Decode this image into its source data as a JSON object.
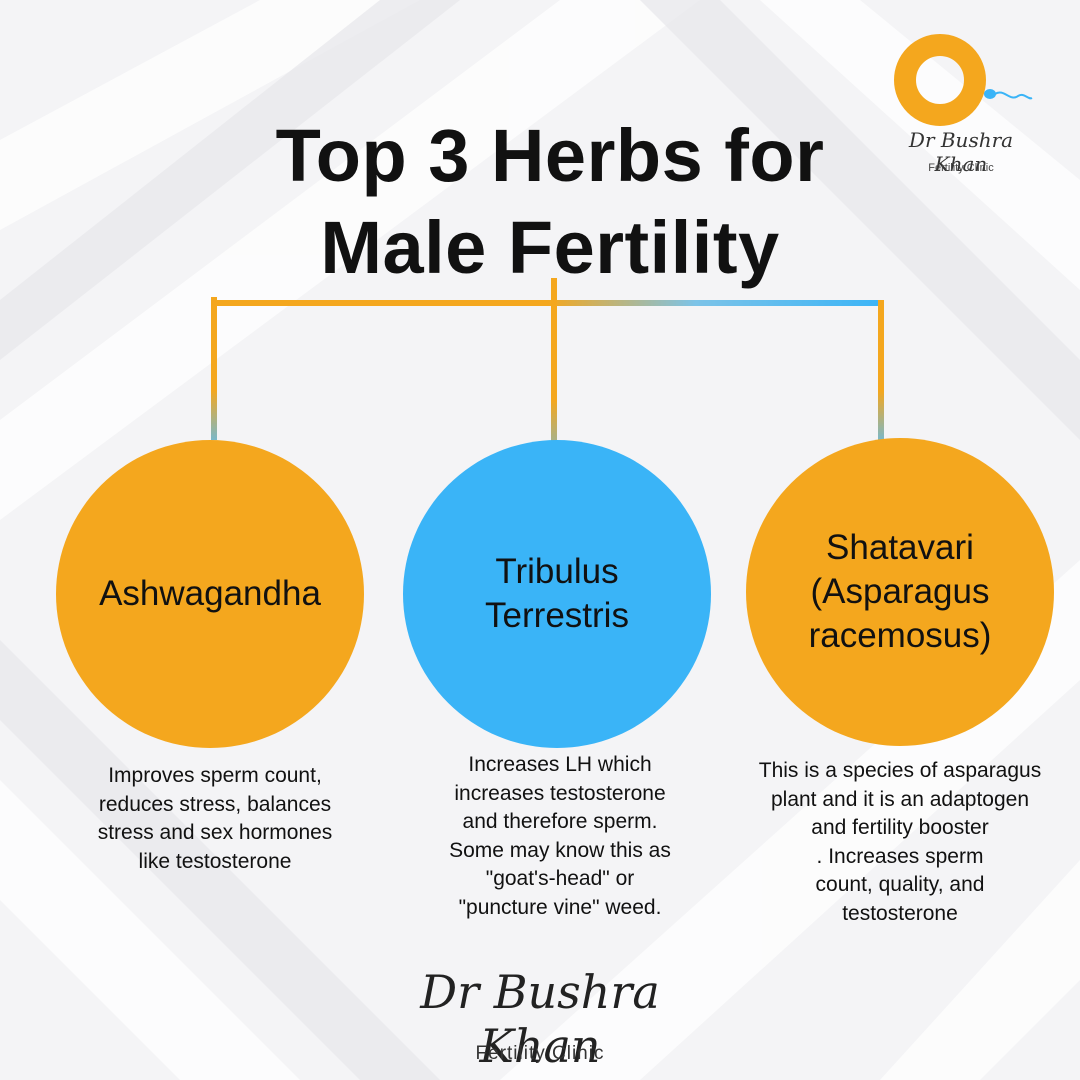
{
  "title": {
    "line1": "Top 3 Herbs for",
    "line2": "Male Fertility"
  },
  "brand": {
    "name": "Dr Bushra Khan",
    "subtitle": "Fertility Clinic",
    "colors": {
      "orange": "#f4a71e",
      "blue": "#3ab4f7"
    }
  },
  "herbs": [
    {
      "name_lines": [
        "Ashwagandha"
      ],
      "color": "#f4a71e",
      "description_lines": [
        "Improves sperm count,",
        "reduces stress, balances",
        "stress and sex hormones",
        "like testosterone"
      ]
    },
    {
      "name_lines": [
        "Tribulus",
        "Terrestris"
      ],
      "color": "#3ab4f7",
      "description_lines": [
        "Increases LH which",
        "increases testosterone",
        "and therefore sperm.",
        "Some may know this as",
        "\"goat's-head\" or",
        "\"puncture vine\" weed."
      ]
    },
    {
      "name_lines": [
        "Shatavari",
        "(Asparagus",
        "racemosus)"
      ],
      "color": "#f4a71e",
      "description_lines": [
        "This is a species of asparagus",
        "plant and it is an adaptogen",
        "and fertility booster",
        ". Increases sperm",
        "count, quality, and",
        "testosterone"
      ]
    }
  ]
}
